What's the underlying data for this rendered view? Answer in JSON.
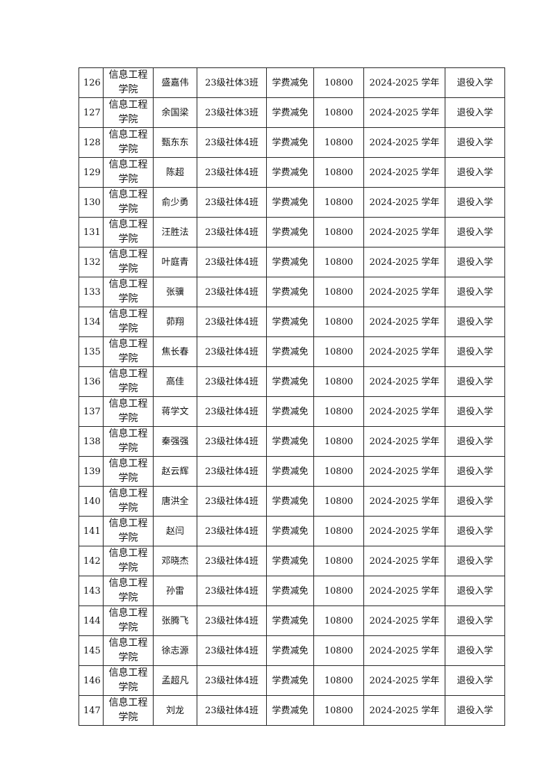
{
  "table": {
    "rows": [
      [
        "126",
        "信息工程学院",
        "盛嘉伟",
        "23级社体3班",
        "学费减免",
        "10800",
        "2024-2025 学年",
        "退役入学"
      ],
      [
        "127",
        "信息工程学院",
        "余国梁",
        "23级社体3班",
        "学费减免",
        "10800",
        "2024-2025 学年",
        "退役入学"
      ],
      [
        "128",
        "信息工程学院",
        "甄东东",
        "23级社体4班",
        "学费减免",
        "10800",
        "2024-2025 学年",
        "退役入学"
      ],
      [
        "129",
        "信息工程学院",
        "陈超",
        "23级社体4班",
        "学费减免",
        "10800",
        "2024-2025 学年",
        "退役入学"
      ],
      [
        "130",
        "信息工程学院",
        "俞少勇",
        "23级社体4班",
        "学费减免",
        "10800",
        "2024-2025 学年",
        "退役入学"
      ],
      [
        "131",
        "信息工程学院",
        "汪胜法",
        "23级社体4班",
        "学费减免",
        "10800",
        "2024-2025 学年",
        "退役入学"
      ],
      [
        "132",
        "信息工程学院",
        "叶庭青",
        "23级社体4班",
        "学费减免",
        "10800",
        "2024-2025 学年",
        "退役入学"
      ],
      [
        "133",
        "信息工程学院",
        "张骥",
        "23级社体4班",
        "学费减免",
        "10800",
        "2024-2025 学年",
        "退役入学"
      ],
      [
        "134",
        "信息工程学院",
        "茆翔",
        "23级社体4班",
        "学费减免",
        "10800",
        "2024-2025 学年",
        "退役入学"
      ],
      [
        "135",
        "信息工程学院",
        "焦长春",
        "23级社体4班",
        "学费减免",
        "10800",
        "2024-2025 学年",
        "退役入学"
      ],
      [
        "136",
        "信息工程学院",
        "高佳",
        "23级社体4班",
        "学费减免",
        "10800",
        "2024-2025 学年",
        "退役入学"
      ],
      [
        "137",
        "信息工程学院",
        "蒋学文",
        "23级社体4班",
        "学费减免",
        "10800",
        "2024-2025 学年",
        "退役入学"
      ],
      [
        "138",
        "信息工程学院",
        "秦强强",
        "23级社体4班",
        "学费减免",
        "10800",
        "2024-2025 学年",
        "退役入学"
      ],
      [
        "139",
        "信息工程学院",
        "赵云辉",
        "23级社体4班",
        "学费减免",
        "10800",
        "2024-2025 学年",
        "退役入学"
      ],
      [
        "140",
        "信息工程学院",
        "唐洪全",
        "23级社体4班",
        "学费减免",
        "10800",
        "2024-2025 学年",
        "退役入学"
      ],
      [
        "141",
        "信息工程学院",
        "赵闫",
        "23级社体4班",
        "学费减免",
        "10800",
        "2024-2025 学年",
        "退役入学"
      ],
      [
        "142",
        "信息工程学院",
        "邓晓杰",
        "23级社体4班",
        "学费减免",
        "10800",
        "2024-2025 学年",
        "退役入学"
      ],
      [
        "143",
        "信息工程学院",
        "孙雷",
        "23级社体4班",
        "学费减免",
        "10800",
        "2024-2025 学年",
        "退役入学"
      ],
      [
        "144",
        "信息工程学院",
        "张腾飞",
        "23级社体4班",
        "学费减免",
        "10800",
        "2024-2025 学年",
        "退役入学"
      ],
      [
        "145",
        "信息工程学院",
        "徐志源",
        "23级社体4班",
        "学费减免",
        "10800",
        "2024-2025 学年",
        "退役入学"
      ],
      [
        "146",
        "信息工程学院",
        "孟超凡",
        "23级社体4班",
        "学费减免",
        "10800",
        "2024-2025 学年",
        "退役入学"
      ],
      [
        "147",
        "信息工程学院",
        "刘龙",
        "23级社体4班",
        "学费减免",
        "10800",
        "2024-2025 学年",
        "退役入学"
      ]
    ]
  }
}
